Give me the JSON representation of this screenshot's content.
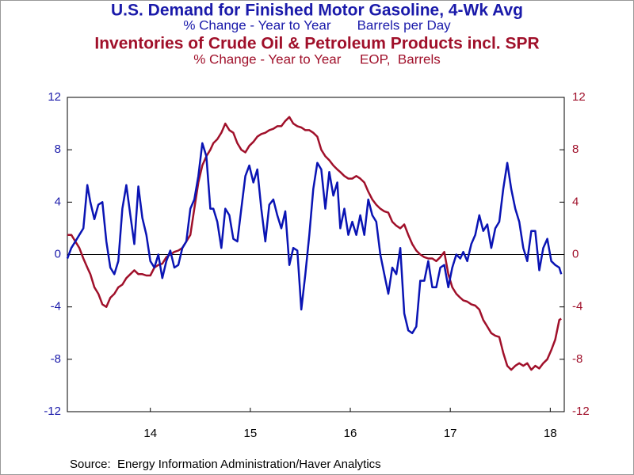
{
  "chart_data": {
    "type": "line",
    "titles": [
      {
        "text": "U.S. Demand for Finished Motor Gasoline, 4-Wk Avg",
        "color": "#1a1aaa"
      },
      {
        "text": "% Change - Year to Year       Barrels per Day",
        "color": "#1a1aaa"
      },
      {
        "text": "Inventories of Crude Oil & Petroleum Products incl. SPR",
        "color": "#a0102a"
      },
      {
        "text": "% Change - Year to Year     EOP,  Barrels",
        "color": "#a0102a"
      }
    ],
    "source": "Source:  Energy Information Administration/Haver Analytics",
    "x": [
      2013.67,
      2013.71,
      2013.75,
      2013.79,
      2013.83,
      2013.87,
      2013.9,
      2013.94,
      2013.98,
      2014.02,
      2014.06,
      2014.1,
      2014.14,
      2014.18,
      2014.22,
      2014.26,
      2014.3,
      2014.34,
      2014.38,
      2014.42,
      2014.46,
      2014.5,
      2014.54,
      2014.58,
      2014.62,
      2014.66,
      2014.7,
      2014.74,
      2014.78,
      2014.82,
      2014.86,
      2014.9,
      2014.94,
      2014.98,
      2015.02,
      2015.06,
      2015.1,
      2015.13,
      2015.17,
      2015.21,
      2015.25,
      2015.29,
      2015.33,
      2015.37,
      2015.41,
      2015.45,
      2015.49,
      2015.53,
      2015.57,
      2015.61,
      2015.65,
      2015.69,
      2015.73,
      2015.77,
      2015.81,
      2015.85,
      2015.89,
      2015.93,
      2015.97,
      2016.01,
      2016.05,
      2016.09,
      2016.13,
      2016.17,
      2016.21,
      2016.25,
      2016.29,
      2016.33,
      2016.37,
      2016.4,
      2016.44,
      2016.48,
      2016.52,
      2016.56,
      2016.6,
      2016.64,
      2016.68,
      2016.72,
      2016.76,
      2016.8,
      2016.84,
      2016.88,
      2016.92,
      2016.96,
      2017.0,
      2017.04,
      2017.08,
      2017.12,
      2017.16,
      2017.2,
      2017.24,
      2017.28,
      2017.32,
      2017.36,
      2017.4,
      2017.44,
      2017.48,
      2017.52,
      2017.56,
      2017.6,
      2017.63,
      2017.67,
      2017.71,
      2017.75,
      2017.79,
      2017.83,
      2017.87,
      2017.91,
      2017.95,
      2017.99,
      2018.03,
      2018.07,
      2018.11,
      2018.15,
      2018.19,
      2018.23,
      2018.27,
      2018.31,
      2018.35,
      2018.39,
      2018.43,
      2018.47,
      2018.51,
      2018.55,
      2018.59,
      2018.61
    ],
    "series": [
      {
        "name": "U.S. Demand for Finished Motor Gasoline",
        "color": "#0a14b4",
        "axis": "y",
        "values": [
          -0.3,
          0.5,
          1.0,
          1.5,
          2.0,
          5.3,
          4.0,
          2.7,
          3.8,
          4.0,
          1.0,
          -1.0,
          -1.5,
          -0.5,
          3.5,
          5.3,
          3.0,
          0.8,
          5.2,
          2.8,
          1.5,
          -0.5,
          -1.0,
          0.0,
          -1.8,
          -0.5,
          0.3,
          -1.0,
          -0.8,
          0.5,
          1.0,
          3.5,
          4.2,
          6.0,
          8.5,
          7.5,
          3.5,
          3.5,
          2.5,
          0.5,
          3.5,
          3.0,
          1.2,
          1.0,
          3.5,
          6.0,
          6.8,
          5.5,
          6.5,
          3.5,
          1.0,
          3.8,
          4.2,
          3.0,
          2.0,
          3.3,
          -0.8,
          0.5,
          0.3,
          -4.2,
          -1.5,
          1.5,
          5.0,
          7.0,
          6.5,
          3.5,
          6.3,
          4.5,
          5.5,
          2.0,
          3.5,
          1.5,
          2.5,
          1.5,
          3.0,
          1.5,
          4.2,
          3.0,
          2.5,
          0.0,
          -1.5,
          -3.0,
          -1.0,
          -1.5,
          0.5,
          -4.5,
          -5.8,
          -6.0,
          -5.5,
          -2.0,
          -2.0,
          -0.5,
          -2.5,
          -2.5,
          -1.0,
          -0.8,
          -2.5,
          -1.0,
          0.0,
          -0.3,
          0.2,
          -0.5,
          0.8,
          1.5,
          3.0,
          1.8,
          2.3,
          0.5,
          2.0,
          2.5,
          5.0,
          7.0,
          5.0,
          3.5,
          2.5,
          0.5,
          -0.5,
          1.8,
          1.8,
          -1.2,
          0.5,
          1.2,
          -0.5,
          -0.8,
          -1.0,
          -1.5
        ]
      },
      {
        "name": "Inventories of Crude Oil & Petroleum Products incl. SPR",
        "color": "#a0102a",
        "axis": "y2",
        "values": [
          1.5,
          1.5,
          1.0,
          0.5,
          -0.3,
          -1.0,
          -1.5,
          -2.5,
          -3.0,
          -3.8,
          -4.0,
          -3.3,
          -3.0,
          -2.5,
          -2.3,
          -1.8,
          -1.5,
          -1.2,
          -1.5,
          -1.5,
          -1.6,
          -1.6,
          -1.0,
          -0.8,
          -0.7,
          -0.2,
          0.0,
          0.2,
          0.3,
          0.5,
          1.0,
          1.5,
          3.5,
          5.5,
          6.8,
          7.5,
          8.0,
          8.5,
          8.8,
          9.3,
          10.0,
          9.5,
          9.3,
          8.5,
          8.0,
          7.8,
          8.3,
          8.6,
          9.0,
          9.2,
          9.3,
          9.5,
          9.6,
          9.8,
          9.8,
          10.2,
          10.5,
          10.0,
          9.8,
          9.7,
          9.5,
          9.5,
          9.3,
          9.0,
          8.0,
          7.5,
          7.2,
          6.8,
          6.5,
          6.3,
          6.0,
          5.8,
          5.8,
          6.0,
          5.8,
          5.5,
          4.8,
          4.2,
          3.8,
          3.5,
          3.3,
          3.2,
          2.5,
          2.2,
          2.0,
          2.3,
          1.5,
          0.8,
          0.3,
          0.0,
          -0.2,
          -0.3,
          -0.3,
          -0.5,
          -0.2,
          0.2,
          -1.5,
          -2.5,
          -3.0,
          -3.3,
          -3.5,
          -3.6,
          -3.8,
          -3.9,
          -4.2,
          -5.0,
          -5.5,
          -6.0,
          -6.2,
          -6.3,
          -7.5,
          -8.5,
          -8.8,
          -8.5,
          -8.3,
          -8.5,
          -8.3,
          -8.8,
          -8.5,
          -8.7,
          -8.3,
          -8.0,
          -7.3,
          -6.5,
          -5.0,
          -4.9
        ]
      }
    ],
    "xlim": [
      2013.67,
      2018.64
    ],
    "xticks": [
      {
        "value": 2014.5,
        "label": "14"
      },
      {
        "value": 2015.5,
        "label": "15"
      },
      {
        "value": 2016.5,
        "label": "16"
      },
      {
        "value": 2017.5,
        "label": "17"
      },
      {
        "value": 2018.5,
        "label": "18"
      }
    ],
    "ylim": [
      -12,
      12
    ],
    "yticks": [
      -12,
      -8,
      -4,
      0,
      4,
      8,
      12
    ],
    "ycolor": "#1a1aaa",
    "y2lim": [
      -12,
      12
    ],
    "y2ticks": [
      -12,
      -8,
      -4,
      0,
      4,
      8,
      12
    ],
    "y2color": "#a0102a"
  }
}
